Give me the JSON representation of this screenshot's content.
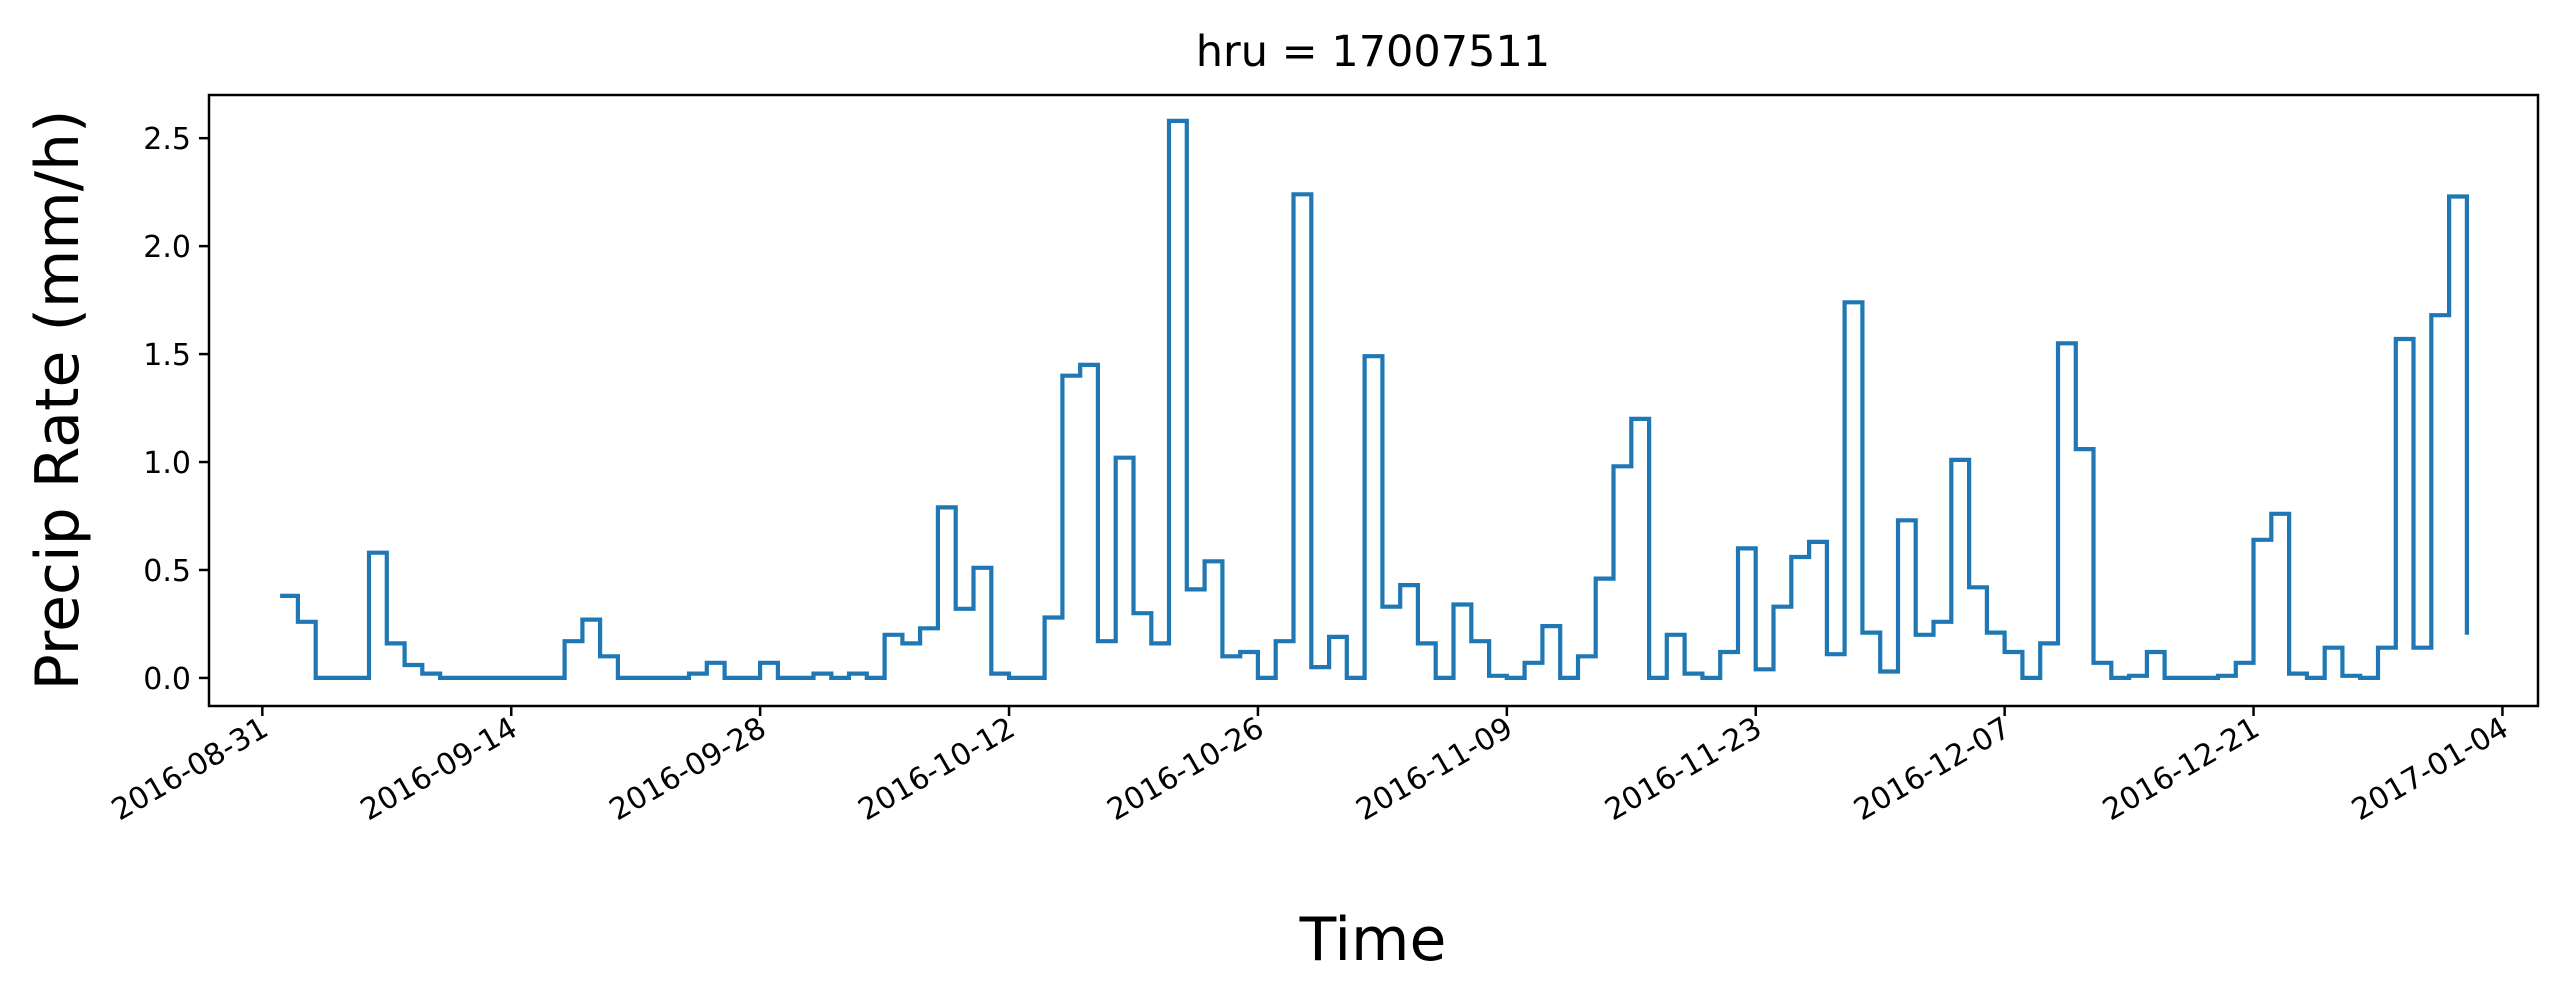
{
  "chart_data": {
    "type": "line",
    "drawstyle": "steps-post",
    "title": "hru = 17007511",
    "xlabel": "Time",
    "ylabel": "Precip Rate (mm/h)",
    "line_color": "#1f77b4",
    "xlim": [
      "2016-08-28",
      "2017-01-06"
    ],
    "ylim": [
      -0.13,
      2.7
    ],
    "x_ticks": [
      "2016-08-31",
      "2016-09-14",
      "2016-09-28",
      "2016-10-12",
      "2016-10-26",
      "2016-11-09",
      "2016-11-23",
      "2016-12-07",
      "2016-12-21",
      "2017-01-04"
    ],
    "y_ticks": [
      0.0,
      0.5,
      1.0,
      1.5,
      2.0,
      2.5
    ],
    "y_tick_labels": [
      "0.0",
      "0.5",
      "1.0",
      "1.5",
      "2.0",
      "2.5"
    ],
    "grid": false,
    "legend": "none",
    "series": [
      {
        "x": [
          "2016-09-01",
          "2016-09-02",
          "2016-09-03",
          "2016-09-04",
          "2016-09-05",
          "2016-09-06",
          "2016-09-07",
          "2016-09-08",
          "2016-09-09",
          "2016-09-10",
          "2016-09-11",
          "2016-09-12",
          "2016-09-13",
          "2016-09-14",
          "2016-09-15",
          "2016-09-16",
          "2016-09-17",
          "2016-09-18",
          "2016-09-19",
          "2016-09-20",
          "2016-09-21",
          "2016-09-22",
          "2016-09-23",
          "2016-09-24",
          "2016-09-25",
          "2016-09-26",
          "2016-09-27",
          "2016-09-28",
          "2016-09-29",
          "2016-09-30",
          "2016-10-01",
          "2016-10-02",
          "2016-10-03",
          "2016-10-04",
          "2016-10-05",
          "2016-10-06",
          "2016-10-07",
          "2016-10-08",
          "2016-10-09",
          "2016-10-10",
          "2016-10-11",
          "2016-10-12",
          "2016-10-13",
          "2016-10-14",
          "2016-10-15",
          "2016-10-16",
          "2016-10-17",
          "2016-10-18",
          "2016-10-19",
          "2016-10-20",
          "2016-10-21",
          "2016-10-22",
          "2016-10-23",
          "2016-10-24",
          "2016-10-25",
          "2016-10-26",
          "2016-10-27",
          "2016-10-28",
          "2016-10-29",
          "2016-10-30",
          "2016-10-31",
          "2016-11-01",
          "2016-11-02",
          "2016-11-03",
          "2016-11-04",
          "2016-11-05",
          "2016-11-06",
          "2016-11-07",
          "2016-11-08",
          "2016-11-09",
          "2016-11-10",
          "2016-11-11",
          "2016-11-12",
          "2016-11-13",
          "2016-11-14",
          "2016-11-15",
          "2016-11-16",
          "2016-11-17",
          "2016-11-18",
          "2016-11-19",
          "2016-11-20",
          "2016-11-21",
          "2016-11-22",
          "2016-11-23",
          "2016-11-24",
          "2016-11-25",
          "2016-11-26",
          "2016-11-27",
          "2016-11-28",
          "2016-11-29",
          "2016-11-30",
          "2016-12-01",
          "2016-12-02",
          "2016-12-03",
          "2016-12-04",
          "2016-12-05",
          "2016-12-06",
          "2016-12-07",
          "2016-12-08",
          "2016-12-09",
          "2016-12-10",
          "2016-12-11",
          "2016-12-12",
          "2016-12-13",
          "2016-12-14",
          "2016-12-15",
          "2016-12-16",
          "2016-12-17",
          "2016-12-18",
          "2016-12-19",
          "2016-12-20",
          "2016-12-21",
          "2016-12-22",
          "2016-12-23",
          "2016-12-24",
          "2016-12-25",
          "2016-12-26",
          "2016-12-27",
          "2016-12-28",
          "2016-12-29",
          "2016-12-30",
          "2016-12-31",
          "2017-01-01",
          "2017-01-02"
        ],
        "y": [
          0.38,
          0.26,
          0.0,
          0.0,
          0.0,
          0.58,
          0.16,
          0.06,
          0.02,
          0.0,
          0.0,
          0.0,
          0.0,
          0.0,
          0.0,
          0.0,
          0.17,
          0.27,
          0.1,
          0.0,
          0.0,
          0.0,
          0.0,
          0.02,
          0.07,
          0.0,
          0.0,
          0.07,
          0.0,
          0.0,
          0.02,
          0.0,
          0.02,
          0.0,
          0.2,
          0.16,
          0.23,
          0.79,
          0.32,
          0.51,
          0.02,
          0.0,
          0.0,
          0.28,
          1.4,
          1.45,
          0.17,
          1.02,
          0.3,
          0.16,
          2.58,
          0.41,
          0.54,
          0.1,
          0.12,
          0.0,
          0.17,
          2.24,
          0.05,
          0.19,
          0.0,
          1.49,
          0.33,
          0.43,
          0.16,
          0.0,
          0.34,
          0.17,
          0.01,
          0.0,
          0.07,
          0.24,
          0.0,
          0.1,
          0.46,
          0.98,
          1.2,
          0.0,
          0.2,
          0.02,
          0.0,
          0.12,
          0.6,
          0.04,
          0.33,
          0.56,
          0.63,
          0.11,
          1.74,
          0.21,
          0.03,
          0.73,
          0.2,
          0.26,
          1.01,
          0.42,
          0.21,
          0.12,
          0.0,
          0.16,
          1.55,
          1.06,
          0.07,
          0.0,
          0.01,
          0.12,
          0.0,
          0.0,
          0.0,
          0.01,
          0.07,
          0.64,
          0.76,
          0.02,
          0.0,
          0.14,
          0.01,
          0.0,
          0.14,
          1.57,
          0.14,
          1.68,
          2.23,
          0.2
        ]
      }
    ]
  }
}
